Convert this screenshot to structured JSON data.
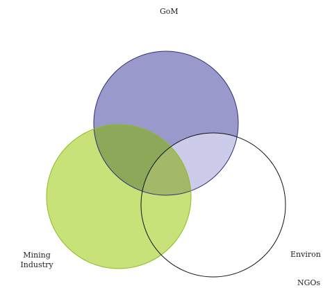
{
  "diagram": {
    "type": "venn",
    "sets": [
      {
        "id": "gom",
        "label": "GoM",
        "fill": "#9a99cc",
        "stroke": "#2e2e7a"
      },
      {
        "id": "mining",
        "label_line1": "Mining",
        "label_line2": "Industry",
        "fill": "#c7e278",
        "stroke": "#8cbc1e"
      },
      {
        "id": "environ",
        "label": "Environ",
        "label_cutoff": "NGOs",
        "fill": "transparent",
        "stroke": "#111111"
      }
    ],
    "overlap_colors": {
      "gom_mining": "#8ea85a",
      "gom_environ": "#ccccea",
      "mining_environ": "#c2dc70",
      "all": "#a3b868"
    }
  }
}
